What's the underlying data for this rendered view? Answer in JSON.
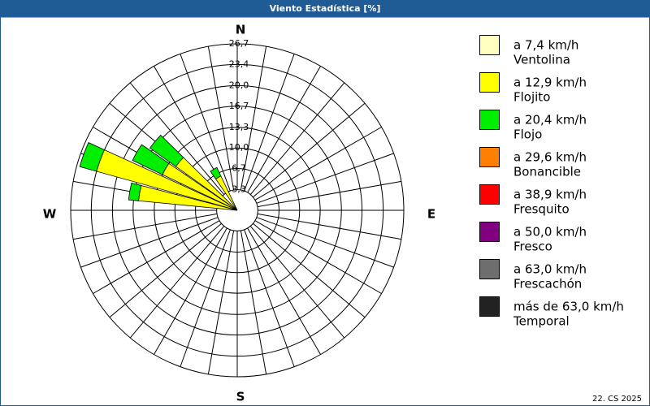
{
  "chart_data": {
    "type": "windrose",
    "title": "Viento Estadística [%]",
    "footer": "22. CS 2025",
    "compass_labels": [
      "N",
      "E",
      "S",
      "W"
    ],
    "x": [
      280,
      290,
      300,
      310,
      330
    ],
    "rlim": [
      0,
      26.7
    ],
    "rticks": [
      {
        "value": 3.3,
        "label": "3,3"
      },
      {
        "value": 6.7,
        "label": "6,7"
      },
      {
        "value": 10.0,
        "label": "10,0"
      },
      {
        "value": 13.3,
        "label": "13,3"
      },
      {
        "value": 16.7,
        "label": "16,7"
      },
      {
        "value": 20.0,
        "label": "20,0"
      },
      {
        "value": 23.4,
        "label": "23,4"
      },
      {
        "value": 26.7,
        "label": "26,7"
      }
    ],
    "series": [
      {
        "name": "a 7,4 km/h",
        "description": "Ventolina",
        "color": "#ffffc0",
        "values": [
          0.4,
          0.4,
          0.4,
          0.4,
          0.3
        ]
      },
      {
        "name": "a 12,9 km/h",
        "description": "Flojito",
        "color": "#ffff00",
        "values": [
          15.5,
          23.0,
          12.9,
          11.7,
          5.8
        ]
      },
      {
        "name": "a 20,4 km/h",
        "description": "Flojo",
        "color": "#00ee00",
        "values": [
          1.6,
          2.8,
          5.3,
          5.1,
          1.5
        ]
      },
      {
        "name": "a 29,6 km/h",
        "description": "Bonancible",
        "color": "#ff8000",
        "values": [
          0,
          0,
          0,
          0,
          0
        ]
      },
      {
        "name": "a 38,9 km/h",
        "description": "Fresquito",
        "color": "#ff0000",
        "values": [
          0,
          0,
          0,
          0,
          0
        ]
      },
      {
        "name": "a 50,0 km/h",
        "description": "Fresco",
        "color": "#800080",
        "values": [
          0,
          0,
          0,
          0,
          0
        ]
      },
      {
        "name": "a 63,0 km/h",
        "description": "Frescachón",
        "color": "#6e6e6e",
        "values": [
          0,
          0,
          0,
          0,
          0
        ]
      },
      {
        "name": "más de 63,0 km/h",
        "description": "Temporal",
        "color": "#222222",
        "values": [
          0,
          0,
          0,
          0,
          0
        ]
      }
    ]
  }
}
